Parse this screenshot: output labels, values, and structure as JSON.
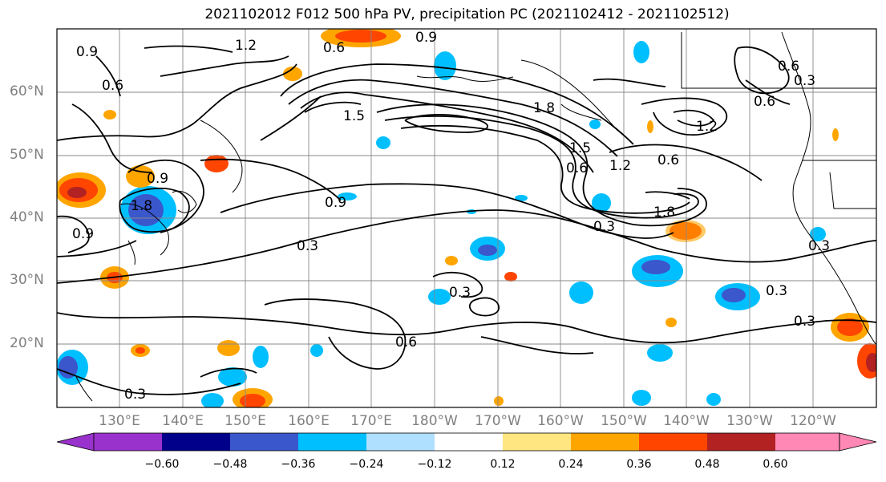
{
  "title": "2021102012 F012 500 hPa PV, precipitation PC (2021102412 - 2021102512)",
  "lat_labels": [
    "60°N",
    "50°N",
    "40°N",
    "30°N",
    "20°N"
  ],
  "lon_labels": [
    "130°E",
    "140°E",
    "150°E",
    "160°E",
    "170°E",
    "180°W",
    "170°W",
    "160°W",
    "150°W",
    "140°W",
    "130°W",
    "120°W"
  ],
  "colorbar": {
    "ticks": [
      "−0.60",
      "−0.48",
      "−0.36",
      "−0.24",
      "−0.12",
      "0.12",
      "0.24",
      "0.36",
      "0.48",
      "0.60"
    ],
    "colors": [
      "#9932cc",
      "#00008b",
      "#3a57cc",
      "#00bfff",
      "#b0e0ff",
      "#ffffff",
      "#ffe680",
      "#ffa500",
      "#ff4500",
      "#b22222",
      "#ff88b4"
    ]
  },
  "contour_labels": [
    "1.2",
    "0.9",
    "0.6",
    "0.9",
    "1.5",
    "1.8",
    "1.8",
    "1.5",
    "1.2",
    "0.6",
    "0.6",
    "0.3",
    "0.6",
    "1.2",
    "0.6",
    "0.9",
    "0.9",
    "0.9",
    "0.3",
    "0.3",
    "1.8",
    "0.3",
    "0.3",
    "0.6",
    "0.3",
    "0.3",
    "0.6",
    "0.3"
  ]
}
